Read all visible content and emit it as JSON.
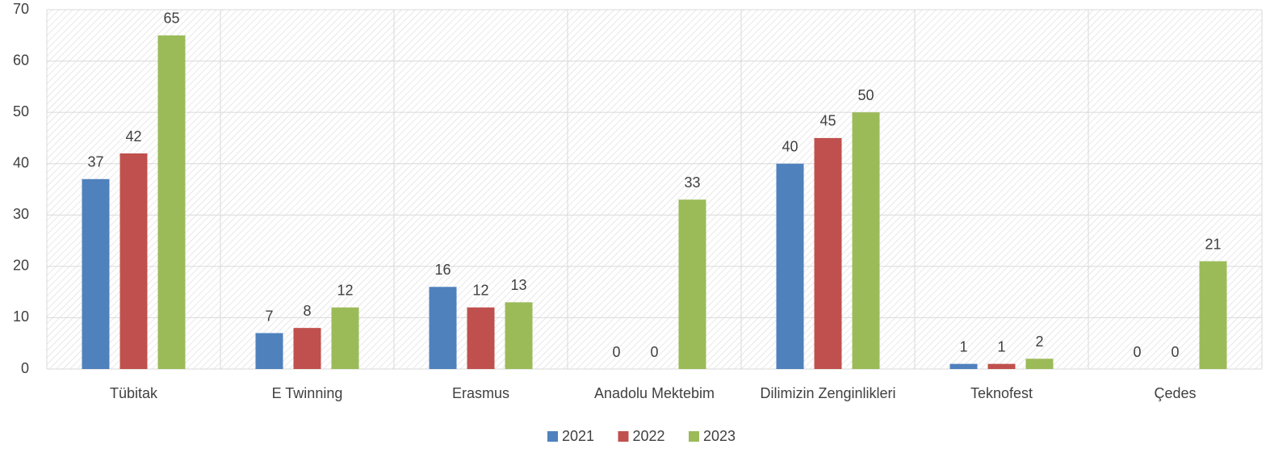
{
  "chart_data": {
    "type": "bar",
    "categories": [
      "Tübitak",
      "E Twinning",
      "Erasmus",
      "Anadolu Mektebim",
      "Dilimizin Zenginlikleri",
      "Teknofest",
      "Çedes"
    ],
    "series": [
      {
        "name": "2021",
        "color": "#4f81bd",
        "values": [
          37,
          7,
          16,
          0,
          40,
          1,
          0
        ]
      },
      {
        "name": "2022",
        "color": "#c0504d",
        "values": [
          42,
          8,
          12,
          0,
          45,
          1,
          0
        ]
      },
      {
        "name": "2023",
        "color": "#9bbb59",
        "values": [
          65,
          12,
          13,
          33,
          50,
          2,
          21
        ]
      }
    ],
    "ylim": [
      0,
      70
    ],
    "yticks": [
      0,
      10,
      20,
      30,
      40,
      50,
      60,
      70
    ],
    "grid": true,
    "legend": "bottom"
  }
}
